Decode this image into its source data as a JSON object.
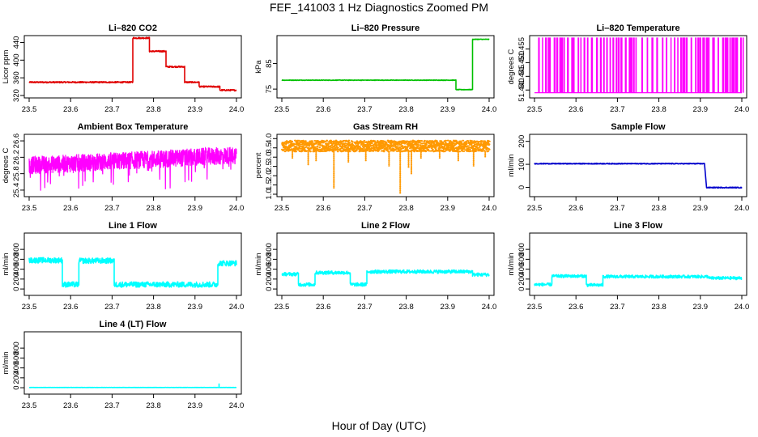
{
  "figure": {
    "title": "FEF_141003  1 Hz Diagnostics Zoomed PM",
    "xlabel": "Hour of Day (UTC)"
  },
  "chart_data": [
    {
      "type": "line",
      "title": "Li–820 CO2",
      "ylabel": "Licor ppm",
      "color": "#e00000",
      "xlim": [
        23.5,
        24.0
      ],
      "xticks": [
        23.5,
        23.6,
        23.7,
        23.8,
        23.9,
        24.0
      ],
      "ylim": [
        320,
        450
      ],
      "yticks": [
        320,
        360,
        400,
        440
      ],
      "noise": 1.5,
      "segments": [
        [
          23.5,
          23.75,
          350
        ],
        [
          23.75,
          23.79,
          450
        ],
        [
          23.79,
          23.83,
          420
        ],
        [
          23.83,
          23.875,
          385
        ],
        [
          23.875,
          23.91,
          350
        ],
        [
          23.91,
          23.96,
          340
        ],
        [
          23.96,
          24.0,
          332
        ]
      ]
    },
    {
      "type": "line",
      "title": "Li–820 Pressure",
      "ylabel": "kPa",
      "color": "#00c000",
      "xlim": [
        23.5,
        24.0
      ],
      "xticks": [
        23.5,
        23.6,
        23.7,
        23.8,
        23.9,
        24.0
      ],
      "ylim": [
        72.5,
        95
      ],
      "yticks": [
        75,
        85
      ],
      "noise": 0.1,
      "segments": [
        [
          23.5,
          23.92,
          78.5
        ],
        [
          23.92,
          23.96,
          74.8
        ],
        [
          23.96,
          24.0,
          94.5
        ]
      ]
    },
    {
      "type": "line",
      "title": "Li–820 Temperature",
      "ylabel": "degrees C",
      "color": "#ff00ff",
      "xlim": [
        23.5,
        24.0
      ],
      "xticks": [
        23.5,
        23.6,
        23.7,
        23.8,
        23.9,
        24.0
      ],
      "ylim": [
        51.438,
        51.459
      ],
      "yticks": [
        51.44,
        51.445,
        51.45,
        51.455
      ],
      "low": 51.439,
      "high": 51.459,
      "pattern": "spikes"
    },
    {
      "type": "line",
      "title": "Ambient Box Temperature",
      "ylabel": "degrees C",
      "color": "#ff00ff",
      "xlim": [
        23.5,
        24.0
      ],
      "xticks": [
        23.5,
        23.6,
        23.7,
        23.8,
        23.9,
        24.0
      ],
      "ylim": [
        25.3,
        26.7
      ],
      "yticks": [
        25.4,
        25.8,
        26.2,
        26.6
      ],
      "trend": [
        [
          23.5,
          26.0
        ],
        [
          23.7,
          26.1
        ],
        [
          24.0,
          26.25
        ]
      ],
      "noise": 0.22,
      "pattern": "noisy"
    },
    {
      "type": "scatter",
      "title": "Gas Stream RH",
      "ylabel": "percent",
      "color": "#ff9900",
      "xlim": [
        23.5,
        24.0
      ],
      "xticks": [
        23.5,
        23.6,
        23.7,
        23.8,
        23.9,
        24.0
      ],
      "ylim": [
        1.0,
        4.1
      ],
      "yticks": [
        1.0,
        1.5,
        2.0,
        2.5,
        3.0,
        3.5,
        4.0
      ],
      "level": 3.6,
      "band": 0.3,
      "dips": [
        [
          23.525,
          2.9
        ],
        [
          23.563,
          2.6
        ],
        [
          23.582,
          2.8
        ],
        [
          23.625,
          1.3
        ],
        [
          23.66,
          2.7
        ],
        [
          23.702,
          2.8
        ],
        [
          23.758,
          2.5
        ],
        [
          23.785,
          1.05
        ],
        [
          23.805,
          2.4
        ],
        [
          23.812,
          2.1
        ],
        [
          23.835,
          2.9
        ],
        [
          23.88,
          2.9
        ],
        [
          23.925,
          2.8
        ],
        [
          23.962,
          2.5
        ],
        [
          23.99,
          3.0
        ]
      ]
    },
    {
      "type": "line",
      "title": "Sample Flow",
      "ylabel": "ml/min",
      "color": "#0000cc",
      "xlim": [
        23.5,
        24.0
      ],
      "xticks": [
        23.5,
        23.6,
        23.7,
        23.8,
        23.9,
        24.0
      ],
      "ylim": [
        -30,
        220
      ],
      "yticks": [
        0,
        100,
        200
      ],
      "noise": 2,
      "segments": [
        [
          23.5,
          23.91,
          103
        ],
        [
          23.915,
          24.0,
          -1
        ]
      ]
    },
    {
      "type": "line",
      "title": "Line 1 Flow",
      "ylabel": "ml/min",
      "color": "#00ffff",
      "xlim": [
        23.5,
        24.0
      ],
      "xticks": [
        23.5,
        23.6,
        23.7,
        23.8,
        23.9,
        24.0
      ],
      "ylim": [
        -80,
        1080
      ],
      "yticks": [
        0,
        200,
        400,
        600,
        800
      ],
      "noise": 55,
      "segments": [
        [
          23.5,
          23.58,
          580
        ],
        [
          23.58,
          23.62,
          90
        ],
        [
          23.62,
          23.705,
          570
        ],
        [
          23.705,
          23.955,
          90
        ],
        [
          23.955,
          24.0,
          520
        ]
      ]
    },
    {
      "type": "line",
      "title": "Line 2 Flow",
      "ylabel": "ml/min",
      "color": "#00ffff",
      "xlim": [
        23.5,
        24.0
      ],
      "xticks": [
        23.5,
        23.6,
        23.7,
        23.8,
        23.9,
        24.0
      ],
      "ylim": [
        -80,
        1080
      ],
      "yticks": [
        0,
        200,
        400,
        600,
        800
      ],
      "noise": 35,
      "segments": [
        [
          23.5,
          23.54,
          300
        ],
        [
          23.54,
          23.58,
          90
        ],
        [
          23.58,
          23.665,
          330
        ],
        [
          23.665,
          23.705,
          90
        ],
        [
          23.705,
          23.96,
          350
        ],
        [
          23.96,
          24.0,
          290
        ]
      ]
    },
    {
      "type": "line",
      "title": "Line 3 Flow",
      "ylabel": "ml/min",
      "color": "#00ffff",
      "xlim": [
        23.5,
        24.0
      ],
      "xticks": [
        23.5,
        23.6,
        23.7,
        23.8,
        23.9,
        24.0
      ],
      "ylim": [
        -80,
        1080
      ],
      "yticks": [
        0,
        200,
        400,
        600,
        800
      ],
      "noise": 30,
      "segments": [
        [
          23.5,
          23.542,
          90
        ],
        [
          23.542,
          23.625,
          260
        ],
        [
          23.625,
          23.665,
          80
        ],
        [
          23.665,
          23.92,
          250
        ],
        [
          23.92,
          24.0,
          220
        ]
      ]
    },
    {
      "type": "line",
      "title": "Line 4 (LT) Flow",
      "ylabel": "ml/min",
      "color": "#00ffff",
      "xlim": [
        23.5,
        24.0
      ],
      "xticks": [
        23.5,
        23.6,
        23.7,
        23.8,
        23.9,
        24.0
      ],
      "ylim": [
        -80,
        1080
      ],
      "yticks": [
        0,
        200,
        400,
        600,
        800
      ],
      "noise": 2,
      "segments": [
        [
          23.5,
          24.0,
          5
        ]
      ],
      "spikes": [
        [
          23.958,
          85
        ]
      ]
    }
  ]
}
